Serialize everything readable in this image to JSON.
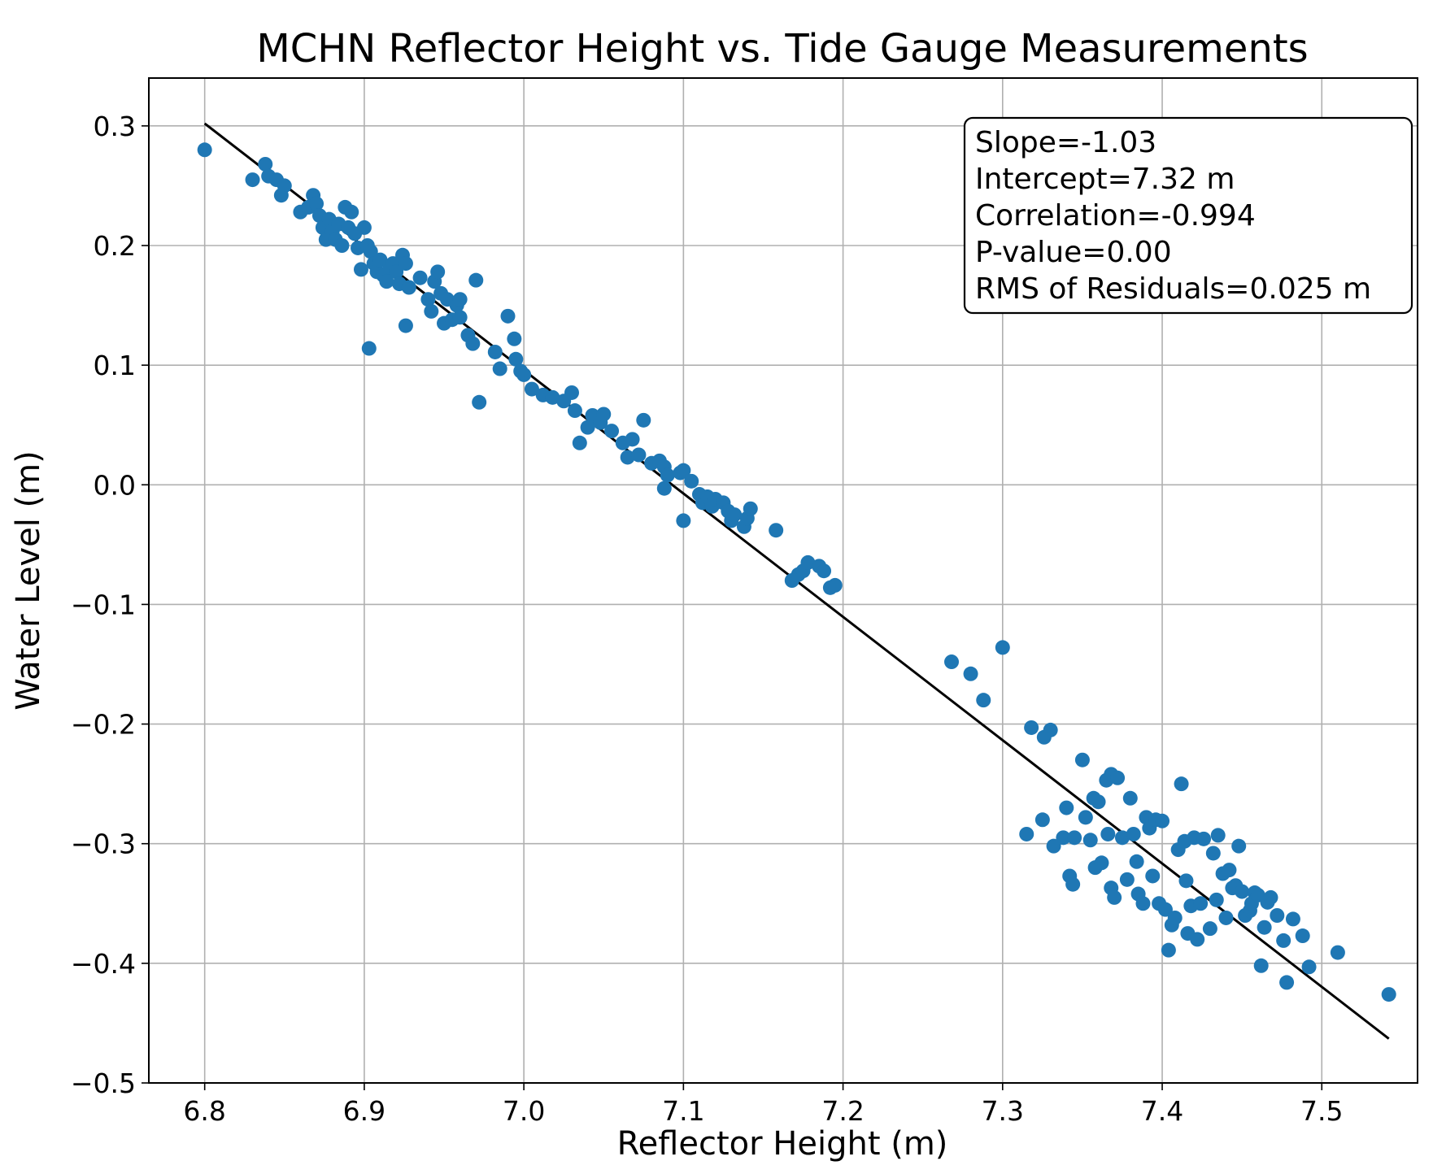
{
  "chart_data": {
    "type": "scatter",
    "title": "MCHN Reflector Height vs. Tide Gauge Measurements",
    "xlabel": "Reflector Height (m)",
    "ylabel": "Water Level (m)",
    "xlim": [
      6.765,
      7.56
    ],
    "ylim": [
      -0.5,
      0.34
    ],
    "xticks": [
      6.8,
      6.9,
      7.0,
      7.1,
      7.2,
      7.3,
      7.4,
      7.5
    ],
    "xtick_labels": [
      "6.8",
      "6.9",
      "7.0",
      "7.1",
      "7.2",
      "7.3",
      "7.4",
      "7.5"
    ],
    "yticks": [
      -0.5,
      -0.4,
      -0.3,
      -0.2,
      -0.1,
      0.0,
      0.1,
      0.2,
      0.3
    ],
    "ytick_labels": [
      "−0.5",
      "−0.4",
      "−0.3",
      "−0.2",
      "−0.1",
      "0.0",
      "0.1",
      "0.2",
      "0.3"
    ],
    "grid": true,
    "point_color": "#1f77b4",
    "fit_line_color": "#000000",
    "fit_line": {
      "x": [
        6.8,
        7.542
      ],
      "y": [
        0.302,
        -0.463
      ]
    },
    "annotation_lines": [
      "Slope=-1.03",
      "Intercept=7.32 m",
      "Correlation=-0.994",
      "P-value=0.00",
      "RMS of Residuals=0.025 m"
    ],
    "annotation_placement": "top-right",
    "points": [
      [
        6.8,
        0.28
      ],
      [
        6.83,
        0.255
      ],
      [
        6.838,
        0.268
      ],
      [
        6.84,
        0.258
      ],
      [
        6.845,
        0.255
      ],
      [
        6.848,
        0.242
      ],
      [
        6.85,
        0.25
      ],
      [
        6.86,
        0.228
      ],
      [
        6.865,
        0.232
      ],
      [
        6.868,
        0.242
      ],
      [
        6.87,
        0.235
      ],
      [
        6.872,
        0.225
      ],
      [
        6.874,
        0.215
      ],
      [
        6.876,
        0.205
      ],
      [
        6.878,
        0.222
      ],
      [
        6.88,
        0.212
      ],
      [
        6.882,
        0.205
      ],
      [
        6.884,
        0.218
      ],
      [
        6.886,
        0.2
      ],
      [
        6.888,
        0.232
      ],
      [
        6.89,
        0.215
      ],
      [
        6.892,
        0.228
      ],
      [
        6.894,
        0.21
      ],
      [
        6.896,
        0.198
      ],
      [
        6.898,
        0.18
      ],
      [
        6.9,
        0.215
      ],
      [
        6.902,
        0.2
      ],
      [
        6.904,
        0.195
      ],
      [
        6.906,
        0.185
      ],
      [
        6.908,
        0.178
      ],
      [
        6.91,
        0.188
      ],
      [
        6.912,
        0.175
      ],
      [
        6.914,
        0.17
      ],
      [
        6.916,
        0.182
      ],
      [
        6.918,
        0.185
      ],
      [
        6.92,
        0.178
      ],
      [
        6.922,
        0.168
      ],
      [
        6.924,
        0.192
      ],
      [
        6.926,
        0.185
      ],
      [
        6.928,
        0.165
      ],
      [
        6.926,
        0.133
      ],
      [
        6.903,
        0.114
      ],
      [
        6.935,
        0.173
      ],
      [
        6.94,
        0.155
      ],
      [
        6.942,
        0.145
      ],
      [
        6.944,
        0.17
      ],
      [
        6.946,
        0.178
      ],
      [
        6.948,
        0.16
      ],
      [
        6.95,
        0.135
      ],
      [
        6.952,
        0.155
      ],
      [
        6.955,
        0.138
      ],
      [
        6.958,
        0.15
      ],
      [
        6.96,
        0.155
      ],
      [
        6.96,
        0.14
      ],
      [
        6.965,
        0.125
      ],
      [
        6.968,
        0.118
      ],
      [
        6.97,
        0.171
      ],
      [
        6.972,
        0.069
      ],
      [
        6.982,
        0.111
      ],
      [
        6.985,
        0.097
      ],
      [
        6.99,
        0.141
      ],
      [
        6.994,
        0.122
      ],
      [
        6.995,
        0.105
      ],
      [
        6.998,
        0.095
      ],
      [
        7.0,
        0.092
      ],
      [
        7.005,
        0.08
      ],
      [
        7.012,
        0.075
      ],
      [
        7.018,
        0.073
      ],
      [
        7.025,
        0.07
      ],
      [
        7.03,
        0.077
      ],
      [
        7.032,
        0.062
      ],
      [
        7.035,
        0.035
      ],
      [
        7.04,
        0.048
      ],
      [
        7.043,
        0.058
      ],
      [
        7.048,
        0.052
      ],
      [
        7.05,
        0.059
      ],
      [
        7.055,
        0.045
      ],
      [
        7.062,
        0.035
      ],
      [
        7.065,
        0.023
      ],
      [
        7.068,
        0.038
      ],
      [
        7.072,
        0.025
      ],
      [
        7.075,
        0.054
      ],
      [
        7.08,
        0.018
      ],
      [
        7.085,
        0.02
      ],
      [
        7.088,
        0.015
      ],
      [
        7.09,
        0.008
      ],
      [
        7.088,
        -0.003
      ],
      [
        7.098,
        0.01
      ],
      [
        7.1,
        0.012
      ],
      [
        7.1,
        -0.03
      ],
      [
        7.105,
        0.003
      ],
      [
        7.11,
        -0.008
      ],
      [
        7.112,
        -0.015
      ],
      [
        7.115,
        -0.01
      ],
      [
        7.118,
        -0.018
      ],
      [
        7.12,
        -0.012
      ],
      [
        7.125,
        -0.015
      ],
      [
        7.128,
        -0.022
      ],
      [
        7.13,
        -0.03
      ],
      [
        7.132,
        -0.025
      ],
      [
        7.138,
        -0.035
      ],
      [
        7.14,
        -0.028
      ],
      [
        7.142,
        -0.02
      ],
      [
        7.158,
        -0.038
      ],
      [
        7.168,
        -0.08
      ],
      [
        7.172,
        -0.075
      ],
      [
        7.175,
        -0.072
      ],
      [
        7.178,
        -0.065
      ],
      [
        7.185,
        -0.068
      ],
      [
        7.188,
        -0.072
      ],
      [
        7.192,
        -0.086
      ],
      [
        7.195,
        -0.084
      ],
      [
        7.268,
        -0.148
      ],
      [
        7.28,
        -0.158
      ],
      [
        7.288,
        -0.18
      ],
      [
        7.3,
        -0.136
      ],
      [
        7.315,
        -0.292
      ],
      [
        7.318,
        -0.203
      ],
      [
        7.325,
        -0.28
      ],
      [
        7.326,
        -0.211
      ],
      [
        7.33,
        -0.205
      ],
      [
        7.332,
        -0.302
      ],
      [
        7.338,
        -0.295
      ],
      [
        7.34,
        -0.27
      ],
      [
        7.345,
        -0.295
      ],
      [
        7.342,
        -0.327
      ],
      [
        7.344,
        -0.334
      ],
      [
        7.35,
        -0.23
      ],
      [
        7.352,
        -0.278
      ],
      [
        7.355,
        -0.297
      ],
      [
        7.357,
        -0.262
      ],
      [
        7.36,
        -0.265
      ],
      [
        7.358,
        -0.32
      ],
      [
        7.362,
        -0.316
      ],
      [
        7.365,
        -0.247
      ],
      [
        7.366,
        -0.292
      ],
      [
        7.368,
        -0.242
      ],
      [
        7.368,
        -0.337
      ],
      [
        7.37,
        -0.345
      ],
      [
        7.372,
        -0.245
      ],
      [
        7.375,
        -0.295
      ],
      [
        7.378,
        -0.33
      ],
      [
        7.38,
        -0.262
      ],
      [
        7.382,
        -0.292
      ],
      [
        7.384,
        -0.315
      ],
      [
        7.385,
        -0.342
      ],
      [
        7.388,
        -0.35
      ],
      [
        7.39,
        -0.278
      ],
      [
        7.392,
        -0.287
      ],
      [
        7.394,
        -0.327
      ],
      [
        7.396,
        -0.28
      ],
      [
        7.398,
        -0.35
      ],
      [
        7.4,
        -0.281
      ],
      [
        7.402,
        -0.355
      ],
      [
        7.404,
        -0.389
      ],
      [
        7.406,
        -0.368
      ],
      [
        7.408,
        -0.362
      ],
      [
        7.41,
        -0.305
      ],
      [
        7.412,
        -0.25
      ],
      [
        7.414,
        -0.298
      ],
      [
        7.415,
        -0.331
      ],
      [
        7.416,
        -0.375
      ],
      [
        7.418,
        -0.352
      ],
      [
        7.42,
        -0.295
      ],
      [
        7.422,
        -0.38
      ],
      [
        7.424,
        -0.35
      ],
      [
        7.426,
        -0.296
      ],
      [
        7.43,
        -0.371
      ],
      [
        7.432,
        -0.308
      ],
      [
        7.434,
        -0.347
      ],
      [
        7.435,
        -0.293
      ],
      [
        7.438,
        -0.325
      ],
      [
        7.44,
        -0.362
      ],
      [
        7.442,
        -0.322
      ],
      [
        7.444,
        -0.337
      ],
      [
        7.446,
        -0.335
      ],
      [
        7.448,
        -0.302
      ],
      [
        7.45,
        -0.34
      ],
      [
        7.452,
        -0.36
      ],
      [
        7.455,
        -0.356
      ],
      [
        7.456,
        -0.35
      ],
      [
        7.458,
        -0.341
      ],
      [
        7.46,
        -0.343
      ],
      [
        7.462,
        -0.402
      ],
      [
        7.464,
        -0.37
      ],
      [
        7.466,
        -0.349
      ],
      [
        7.468,
        -0.345
      ],
      [
        7.472,
        -0.36
      ],
      [
        7.476,
        -0.381
      ],
      [
        7.478,
        -0.416
      ],
      [
        7.482,
        -0.363
      ],
      [
        7.488,
        -0.377
      ],
      [
        7.492,
        -0.403
      ],
      [
        7.51,
        -0.391
      ],
      [
        7.542,
        -0.426
      ]
    ]
  }
}
